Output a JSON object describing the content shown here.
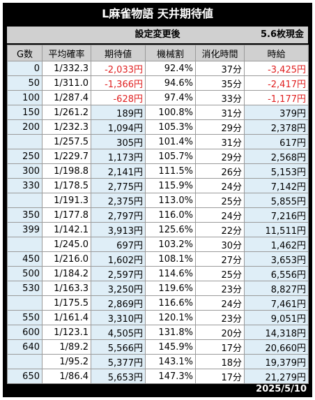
{
  "title": "L麻雀物語 天井期待値",
  "subheader": {
    "setting": "設定変更後",
    "exchange": "5.6枚現金"
  },
  "columns": [
    "G数",
    "平均確率",
    "期待値",
    "機械割",
    "消化時間",
    "時給"
  ],
  "rows": [
    {
      "g": "0",
      "prob": "1/332.3",
      "ev": "-2,033円",
      "rate": "92.4%",
      "time": "37分",
      "hourly": "-3,425円",
      "ev_neg": true,
      "hourly_neg": true
    },
    {
      "g": "50",
      "prob": "1/311.0",
      "ev": "-1,366円",
      "rate": "94.6%",
      "time": "35分",
      "hourly": "-2,417円",
      "ev_neg": true,
      "hourly_neg": true
    },
    {
      "g": "100",
      "prob": "1/287.4",
      "ev": "-628円",
      "rate": "97.4%",
      "time": "33分",
      "hourly": "-1,177円",
      "ev_neg": true,
      "hourly_neg": true
    },
    {
      "g": "150",
      "prob": "1/261.2",
      "ev": "189円",
      "rate": "100.8%",
      "time": "31分",
      "hourly": "379円"
    },
    {
      "g": "200",
      "prob": "1/232.3",
      "ev": "1,094円",
      "rate": "105.3%",
      "time": "29分",
      "hourly": "2,378円"
    },
    {
      "g": "",
      "prob": "1/257.5",
      "ev": "305円",
      "rate": "101.4%",
      "time": "31分",
      "hourly": "617円"
    },
    {
      "g": "250",
      "prob": "1/229.7",
      "ev": "1,173円",
      "rate": "105.7%",
      "time": "29分",
      "hourly": "2,568円"
    },
    {
      "g": "300",
      "prob": "1/198.8",
      "ev": "2,141円",
      "rate": "111.5%",
      "time": "26分",
      "hourly": "5,153円"
    },
    {
      "g": "330",
      "prob": "1/178.5",
      "ev": "2,775円",
      "rate": "115.9%",
      "time": "24分",
      "hourly": "7,142円"
    },
    {
      "g": "",
      "prob": "1/191.3",
      "ev": "2,375円",
      "rate": "113.0%",
      "time": "25分",
      "hourly": "5,855円"
    },
    {
      "g": "350",
      "prob": "1/177.8",
      "ev": "2,797円",
      "rate": "116.0%",
      "time": "24分",
      "hourly": "7,216円"
    },
    {
      "g": "399",
      "prob": "1/142.1",
      "ev": "3,913円",
      "rate": "125.6%",
      "time": "22分",
      "hourly": "11,511円"
    },
    {
      "g": "",
      "prob": "1/245.0",
      "ev": "697円",
      "rate": "103.2%",
      "time": "30分",
      "hourly": "1,462円"
    },
    {
      "g": "450",
      "prob": "1/216.0",
      "ev": "1,602円",
      "rate": "108.1%",
      "time": "27分",
      "hourly": "3,653円"
    },
    {
      "g": "500",
      "prob": "1/184.2",
      "ev": "2,597円",
      "rate": "114.6%",
      "time": "25分",
      "hourly": "6,556円"
    },
    {
      "g": "530",
      "prob": "1/163.3",
      "ev": "3,250円",
      "rate": "119.6%",
      "time": "23分",
      "hourly": "8,827円"
    },
    {
      "g": "",
      "prob": "1/175.5",
      "ev": "2,869円",
      "rate": "116.6%",
      "time": "24分",
      "hourly": "7,461円"
    },
    {
      "g": "550",
      "prob": "1/161.4",
      "ev": "3,310円",
      "rate": "120.1%",
      "time": "23分",
      "hourly": "9,051円"
    },
    {
      "g": "600",
      "prob": "1/123.1",
      "ev": "4,505円",
      "rate": "131.8%",
      "time": "20分",
      "hourly": "14,318円"
    },
    {
      "g": "640",
      "prob": "1/89.2",
      "ev": "5,566円",
      "rate": "145.9%",
      "time": "17分",
      "hourly": "20,660円"
    },
    {
      "g": "",
      "prob": "1/95.2",
      "ev": "5,377円",
      "rate": "143.1%",
      "time": "18分",
      "hourly": "19,379円"
    },
    {
      "g": "650",
      "prob": "1/86.4",
      "ev": "5,653円",
      "rate": "147.3%",
      "time": "17分",
      "hourly": "21,279円"
    }
  ],
  "footer": {
    "date": "2025/5/10"
  },
  "colors": {
    "negative": "#e02020",
    "highlight": "#dfeef7",
    "header": "#d0d0d0",
    "frame": "#000000"
  }
}
